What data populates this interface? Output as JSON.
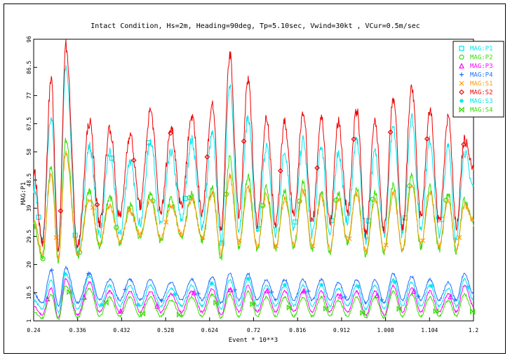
{
  "chart_data": {
    "type": "line",
    "title": "Intact Condition, Hs=2m, Heading=90deg, Tp=5.10sec, Vwind=30kt , VCur=0.5m/sec",
    "xlabel": "Event * 10**3",
    "ylabel": "MAG:P1",
    "xlim": [
      0.24,
      1.2
    ],
    "ylim": [
      1,
      96
    ],
    "xticks": [
      "0.24",
      "0.336",
      "0.432",
      "0.528",
      "0.624",
      "0.72",
      "0.816",
      "0.912",
      "1.008",
      "1.104",
      "1.2"
    ],
    "yticks": [
      "1",
      "10.5",
      "20",
      "29.5",
      "39",
      "48.5",
      "58",
      "67.5",
      "77",
      "86.5",
      "96"
    ],
    "grid": false,
    "legend_position": "top-right",
    "peak_x": [
      0.278,
      0.31,
      0.362,
      0.406,
      0.45,
      0.495,
      0.54,
      0.585,
      0.63,
      0.668,
      0.708,
      0.748,
      0.788,
      0.828,
      0.868,
      0.905,
      0.945,
      0.985,
      1.025,
      1.065,
      1.105,
      1.145,
      1.18
    ],
    "series": [
      {
        "name": "MAG:P1",
        "color": "#00e5ee",
        "marker": "square",
        "base": 46,
        "peaks": [
          70,
          86,
          60,
          58,
          55,
          62,
          58,
          62,
          64,
          80,
          70,
          60,
          58,
          62,
          60,
          58,
          62,
          58,
          66,
          70,
          62,
          60,
          58
        ],
        "troughs": [
          28,
          25,
          24,
          30,
          30,
          34,
          33,
          35,
          33,
          28,
          32,
          30,
          30,
          32,
          30,
          30,
          34,
          28,
          30,
          30,
          32,
          30,
          28
        ]
      },
      {
        "name": "MAG:P2",
        "color": "#33dd00",
        "marker": "circle",
        "base": 34,
        "peaks": [
          53,
          62,
          45,
          43,
          40,
          44,
          42,
          44,
          46,
          56,
          50,
          46,
          45,
          48,
          45,
          44,
          46,
          44,
          47,
          50,
          46,
          44,
          42
        ],
        "troughs": [
          22,
          21,
          22,
          26,
          27,
          29,
          28,
          29,
          28,
          22,
          26,
          25,
          25,
          26,
          25,
          24,
          27,
          23,
          24,
          24,
          26,
          25,
          24
        ]
      },
      {
        "name": "MAG:P3",
        "color": "#ff00ff",
        "marker": "triangle",
        "base": 6,
        "peaks": [
          12,
          15,
          14,
          11,
          11,
          11,
          10,
          11,
          12,
          12,
          13,
          11,
          11,
          11,
          11,
          10,
          11,
          11,
          13,
          12,
          11,
          10,
          13
        ],
        "troughs": [
          3,
          2,
          3,
          4,
          4,
          4,
          4,
          4,
          4,
          3,
          4,
          4,
          4,
          4,
          4,
          4,
          4,
          3,
          3,
          4,
          4,
          4,
          4
        ]
      },
      {
        "name": "MAG:P4",
        "color": "#1e6fff",
        "marker": "plus",
        "base": 10,
        "peaks": [
          18,
          19,
          17,
          15,
          15,
          15,
          14,
          15,
          16,
          17,
          17,
          15,
          15,
          15,
          15,
          14,
          15,
          15,
          17,
          16,
          15,
          14,
          17
        ],
        "troughs": [
          7,
          6,
          7,
          8,
          8,
          8,
          8,
          8,
          8,
          7,
          8,
          8,
          8,
          8,
          8,
          8,
          8,
          7,
          7,
          8,
          8,
          8,
          8
        ]
      },
      {
        "name": "MAG:S1",
        "color": "#ff9900",
        "marker": "x",
        "base": 35,
        "peaks": [
          50,
          58,
          42,
          40,
          38,
          42,
          40,
          42,
          44,
          50,
          46,
          44,
          42,
          45,
          43,
          42,
          44,
          42,
          44,
          47,
          44,
          42,
          40
        ],
        "troughs": [
          24,
          22,
          23,
          27,
          28,
          30,
          29,
          30,
          29,
          24,
          27,
          26,
          26,
          27,
          26,
          25,
          28,
          24,
          25,
          25,
          27,
          26,
          25
        ]
      },
      {
        "name": "MAG:S2",
        "color": "#ee0000",
        "marker": "diamond",
        "base": 52,
        "peaks": [
          82,
          94,
          68,
          66,
          64,
          72,
          66,
          70,
          74,
          91,
          82,
          70,
          68,
          72,
          70,
          68,
          72,
          68,
          76,
          80,
          72,
          70,
          62
        ],
        "troughs": [
          27,
          25,
          26,
          34,
          36,
          40,
          38,
          40,
          38,
          31,
          37,
          34,
          34,
          36,
          34,
          34,
          38,
          30,
          32,
          32,
          36,
          34,
          33
        ]
      },
      {
        "name": "MAG:S3",
        "color": "#00e5ee",
        "marker": "asterisk",
        "base": 8,
        "peaks": [
          15,
          17,
          16,
          13,
          13,
          13,
          12,
          13,
          14,
          15,
          15,
          13,
          13,
          13,
          13,
          12,
          13,
          13,
          15,
          14,
          13,
          12,
          15
        ],
        "troughs": [
          5,
          4,
          5,
          6,
          6,
          6,
          6,
          6,
          6,
          5,
          6,
          6,
          6,
          6,
          6,
          6,
          6,
          5,
          5,
          6,
          6,
          6,
          6
        ]
      },
      {
        "name": "MAG:S4",
        "color": "#33dd00",
        "marker": "bowtie",
        "base": 4,
        "peaks": [
          10,
          13,
          12,
          9,
          9,
          9,
          8,
          9,
          10,
          10,
          11,
          9,
          9,
          9,
          9,
          8,
          9,
          9,
          11,
          10,
          9,
          8,
          10
        ],
        "troughs": [
          2,
          1.5,
          2,
          2.5,
          2.5,
          2.5,
          2.5,
          2.5,
          2.5,
          2,
          2.5,
          2.5,
          2.5,
          2.5,
          2.5,
          2.5,
          2.5,
          2,
          2,
          2.5,
          2.5,
          2.5,
          2.5
        ]
      }
    ]
  }
}
